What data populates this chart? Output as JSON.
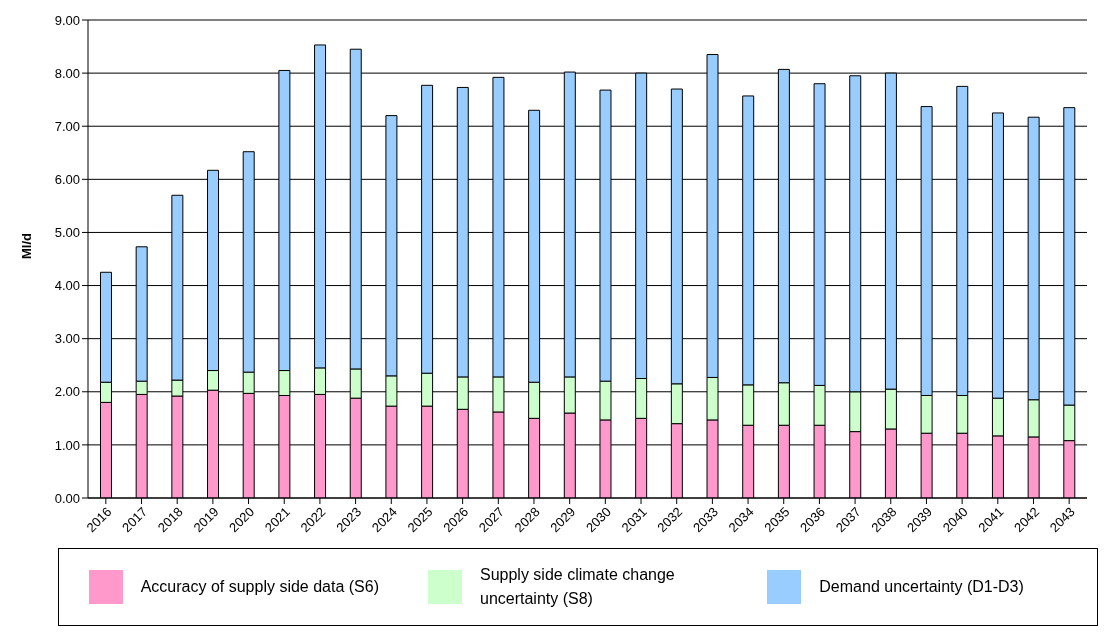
{
  "chart_data": {
    "type": "bar",
    "stacked": true,
    "ylabel": "Ml/d",
    "categories": [
      "2016",
      "2017",
      "2018",
      "2019",
      "2020",
      "2021",
      "2022",
      "2023",
      "2024",
      "2025",
      "2026",
      "2027",
      "2028",
      "2029",
      "2030",
      "2031",
      "2032",
      "2033",
      "2034",
      "2035",
      "2036",
      "2037",
      "2038",
      "2039",
      "2040",
      "2041",
      "2042",
      "2043"
    ],
    "series": [
      {
        "name": "Accuracy of supply side data (S6)",
        "color": "#ff99cc",
        "values": [
          1.8,
          1.95,
          1.92,
          2.03,
          1.97,
          1.93,
          1.95,
          1.88,
          1.73,
          1.73,
          1.67,
          1.62,
          1.5,
          1.6,
          1.47,
          1.5,
          1.4,
          1.47,
          1.37,
          1.37,
          1.37,
          1.25,
          1.3,
          1.22,
          1.22,
          1.17,
          1.15,
          1.08
        ]
      },
      {
        "name": "Supply side climate change uncertainty (S8)",
        "color": "#ccffcc",
        "values": [
          0.38,
          0.25,
          0.3,
          0.37,
          0.4,
          0.47,
          0.5,
          0.55,
          0.57,
          0.62,
          0.61,
          0.66,
          0.68,
          0.68,
          0.73,
          0.75,
          0.75,
          0.8,
          0.76,
          0.8,
          0.75,
          0.75,
          0.75,
          0.71,
          0.71,
          0.71,
          0.7,
          0.67
        ]
      },
      {
        "name": "Demand uncertainty (D1-D3)",
        "color": "#99ccff",
        "values": [
          2.07,
          2.53,
          3.48,
          3.77,
          4.15,
          5.65,
          6.08,
          6.02,
          4.9,
          5.42,
          5.45,
          5.64,
          5.12,
          5.74,
          5.48,
          5.75,
          5.55,
          6.08,
          5.44,
          5.9,
          5.68,
          5.95,
          5.95,
          5.44,
          5.82,
          5.37,
          5.32,
          5.6
        ]
      }
    ],
    "ylim": [
      0,
      9
    ],
    "yticks": [
      {
        "value": 0,
        "label": "0.00"
      },
      {
        "value": 1,
        "label": "1.00"
      },
      {
        "value": 2,
        "label": "2.00"
      },
      {
        "value": 3,
        "label": "3.00"
      },
      {
        "value": 4,
        "label": "4.00"
      },
      {
        "value": 5,
        "label": "5.00"
      },
      {
        "value": 6,
        "label": "6.00"
      },
      {
        "value": 7,
        "label": "7.00"
      },
      {
        "value": 8,
        "label": "8.00"
      },
      {
        "value": 9,
        "label": "9.00"
      }
    ],
    "grid": "y",
    "legend": "bottom"
  }
}
